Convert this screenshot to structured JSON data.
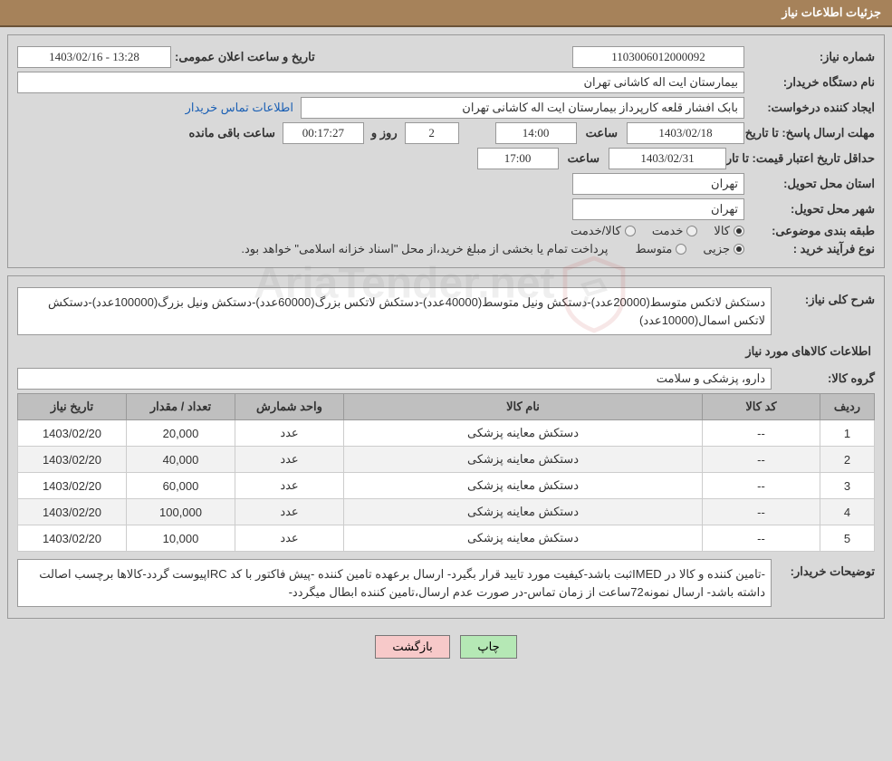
{
  "header": {
    "title": "جزئیات اطلاعات نیاز"
  },
  "fields": {
    "need_number_label": "شماره نیاز:",
    "need_number": "1103006012000092",
    "public_date_label": "تاریخ و ساعت اعلان عمومی:",
    "public_date": "1403/02/16 - 13:28",
    "buyer_org_label": "نام دستگاه خریدار:",
    "buyer_org": "بیمارستان ایت اله کاشانی تهران",
    "requester_label": "ایجاد کننده درخواست:",
    "requester": "بابک افشار قلعه کارپرداز بیمارستان ایت اله کاشانی تهران",
    "contact_link": "اطلاعات تماس خریدار",
    "deadline_label": "مهلت ارسال پاسخ: تا تاریخ:",
    "deadline_date": "1403/02/18",
    "time_label": "ساعت",
    "deadline_time": "14:00",
    "days_label": "روز و",
    "days_val": "2",
    "countdown": "00:17:27",
    "remaining_label": "ساعت باقی مانده",
    "validity_label": "حداقل تاریخ اعتبار قیمت: تا تاریخ:",
    "validity_date": "1403/02/31",
    "validity_time": "17:00",
    "province_label": "استان محل تحویل:",
    "province": "تهران",
    "city_label": "شهر محل تحویل:",
    "city": "تهران",
    "category_label": "طبقه بندی موضوعی:",
    "cat_goods": "کالا",
    "cat_service": "خدمت",
    "cat_goods_service": "کالا/خدمت",
    "purchase_type_label": "نوع فرآیند خرید :",
    "pt_partial": "جزیی",
    "pt_medium": "متوسط",
    "payment_note": "پرداخت تمام یا بخشی از مبلغ خرید،از محل \"اسناد خزانه اسلامی\" خواهد بود.",
    "summary_label": "شرح کلی نیاز:",
    "summary": "دستکش لاتکس متوسط(20000عدد)-دستکش ونیل متوسط(40000عدد)-دستکش لاتکس بزرگ(60000عدد)-دستکش ونیل بزرگ(100000عدد)-دستکش لاتکس اسمال(10000عدد)",
    "items_title": "اطلاعات کالاهای مورد نیاز",
    "group_label": "گروه کالا:",
    "group": "دارو، پزشکی و سلامت",
    "buyer_notes_label": "توضیحات خریدار:",
    "buyer_notes": "-تامین کننده و کالا در IMEDثبت باشد-کیفیت مورد تایید قرار بگیرد- ارسال برعهده تامین کننده -پیش فاکتور با کد IRCپیوست گردد-کالاها برچسب اصالت داشته باشد- ارسال نمونه72ساعت از زمان تماس-در صورت عدم ارسال،تامین کننده ابطال میگردد-"
  },
  "table": {
    "headers": {
      "row": "ردیف",
      "code": "کد کالا",
      "name": "نام کالا",
      "unit": "واحد شمارش",
      "qty": "تعداد / مقدار",
      "date": "تاریخ نیاز"
    },
    "rows": [
      {
        "row": "1",
        "code": "--",
        "name": "دستکش معاینه پزشکی",
        "unit": "عدد",
        "qty": "20,000",
        "date": "1403/02/20"
      },
      {
        "row": "2",
        "code": "--",
        "name": "دستکش معاینه پزشکی",
        "unit": "عدد",
        "qty": "40,000",
        "date": "1403/02/20"
      },
      {
        "row": "3",
        "code": "--",
        "name": "دستکش معاینه پزشکی",
        "unit": "عدد",
        "qty": "60,000",
        "date": "1403/02/20"
      },
      {
        "row": "4",
        "code": "--",
        "name": "دستکش معاینه پزشکی",
        "unit": "عدد",
        "qty": "100,000",
        "date": "1403/02/20"
      },
      {
        "row": "5",
        "code": "--",
        "name": "دستکش معاینه پزشکی",
        "unit": "عدد",
        "qty": "10,000",
        "date": "1403/02/20"
      }
    ]
  },
  "buttons": {
    "print": "چاپ",
    "back": "بازگشت"
  },
  "watermark": {
    "text": "AriaTender.net"
  },
  "colors": {
    "header_bg": "#a6825a",
    "panel_bg": "#d9d9d9",
    "th_bg": "#bfbfbf",
    "link": "#1a5fb4",
    "btn_green": "#b5e8b5",
    "btn_pink": "#f7c9c9"
  }
}
